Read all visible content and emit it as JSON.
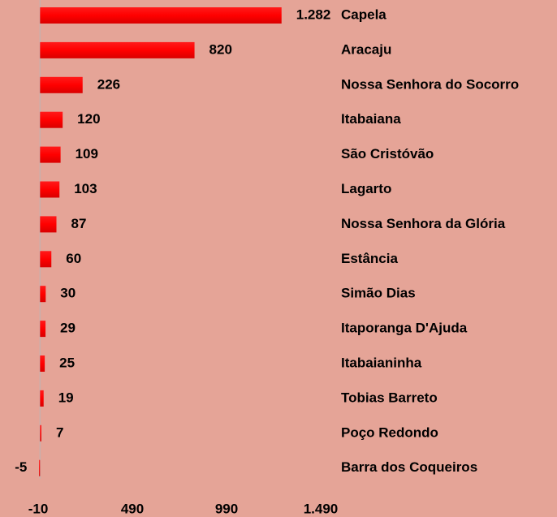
{
  "chart_data": {
    "type": "bar",
    "orientation": "horizontal",
    "categories": [
      "Capela",
      "Aracaju",
      "Nossa Senhora do Socorro",
      "Itabaiana",
      "São Cristóvão",
      "Lagarto",
      "Nossa Senhora da Glória",
      "Estância",
      "Simão Dias",
      "Itaporanga D'Ajuda",
      "Itabaianinha",
      "Tobias Barreto",
      "Poço Redondo",
      "Barra dos Coqueiros"
    ],
    "values": [
      1282,
      820,
      226,
      120,
      109,
      103,
      87,
      60,
      30,
      29,
      25,
      19,
      7,
      -5
    ],
    "value_labels": [
      "1.282",
      "820",
      "226",
      "120",
      "109",
      "103",
      "87",
      "60",
      "30",
      "29",
      "25",
      "19",
      "7",
      "-5"
    ],
    "color": "#ff0000",
    "xlim": [
      -10,
      1490
    ],
    "xticks": [
      -10,
      490,
      990,
      {
        "value": 1490,
        "label": "1.490"
      }
    ],
    "grid": false
  }
}
